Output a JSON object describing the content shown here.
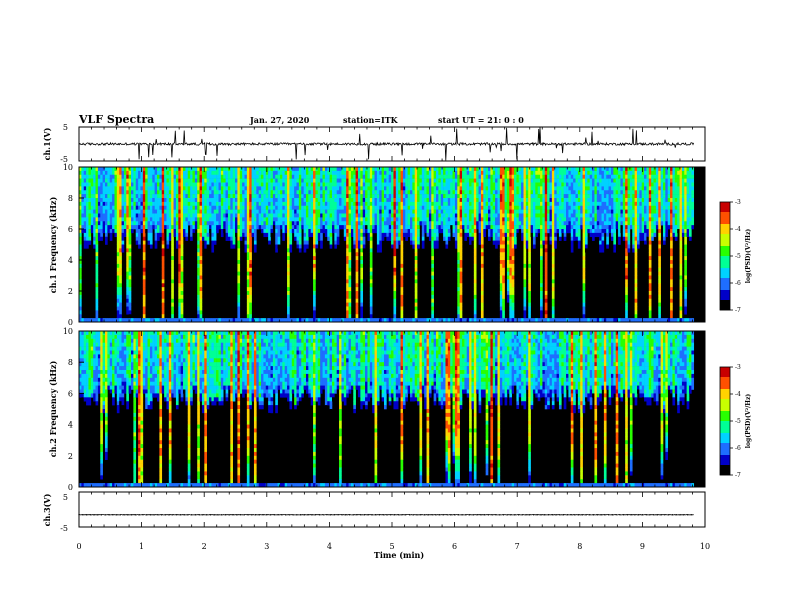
{
  "header": {
    "title": "VLF Spectra",
    "date": "Jan. 27, 2020",
    "station": "station=ITK",
    "start": "start UT = 21: 0 : 0"
  },
  "chart_data": [
    {
      "type": "line",
      "ylabel": "ch.1(V)",
      "yticks": [
        "5",
        "-5"
      ],
      "ylim": [
        -5,
        5
      ],
      "xlim": [
        0,
        10
      ],
      "signal": {
        "baseline": 0,
        "noise_amplitude": 0.35,
        "spike_amplitude": 5,
        "color": "#000000"
      }
    },
    {
      "type": "heatmap",
      "ylabel": "ch.1 Frequency (kHz)",
      "xlim": [
        0,
        10
      ],
      "ylim": [
        0,
        10
      ],
      "yticks": [
        "0",
        "2",
        "4",
        "6",
        "8",
        "10"
      ],
      "colorbar": {
        "ticks": [
          "-3",
          "-4",
          "-5",
          "-6",
          "-7"
        ],
        "label": "log(PSD)(V²/Hz)",
        "range": [
          -7,
          -3
        ]
      },
      "emission_top_khz": 5.8
    },
    {
      "type": "heatmap",
      "ylabel": "ch.2 Frequency (kHz)",
      "xlim": [
        0,
        10
      ],
      "ylim": [
        0,
        10
      ],
      "yticks": [
        "0",
        "2",
        "4",
        "6",
        "8",
        "10"
      ],
      "colorbar": {
        "ticks": [
          "-3",
          "-4",
          "-5",
          "-6",
          "-7"
        ],
        "label": "log(PSD)(V²/Hz)",
        "range": [
          -7,
          -3
        ]
      },
      "emission_top_khz": 6.0
    },
    {
      "type": "line",
      "ylabel": "ch.3(V)",
      "yticks": [
        "5",
        "-5"
      ],
      "ylim": [
        -5,
        5
      ],
      "xlim": [
        0,
        10
      ],
      "signal": {
        "baseline": -1.5,
        "noise_amplitude": 0.05,
        "color": "#000000"
      }
    }
  ],
  "xaxis": {
    "label": "Time (min)",
    "ticks": [
      "0",
      "1",
      "2",
      "3",
      "4",
      "5",
      "6",
      "7",
      "8",
      "9",
      "10"
    ],
    "range": [
      0,
      10
    ]
  },
  "colors": {
    "scale": [
      "#000000",
      "#0000c8",
      "#1e6eff",
      "#00d2ff",
      "#00ff96",
      "#28ff00",
      "#c8ff00",
      "#ffd200",
      "#ff5000",
      "#c80000",
      "#ffffff"
    ]
  }
}
